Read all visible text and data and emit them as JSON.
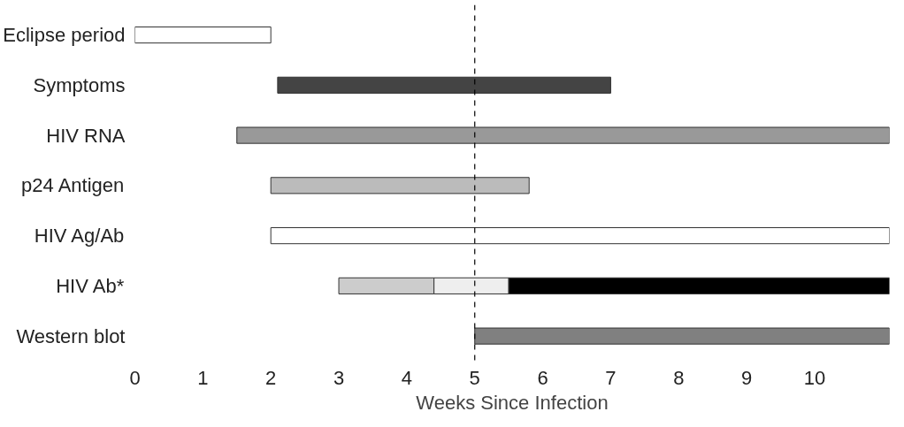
{
  "chart_data": {
    "type": "bar",
    "orientation": "horizontal",
    "categories": [
      "Eclipse period",
      "Symptoms",
      "HIV RNA",
      "p24 Antigen",
      "HIV Ag/Ab",
      "HIV Ab*",
      "Western blot"
    ],
    "series": [
      {
        "colors": [
          "#ffffff",
          "#444444",
          "#999999",
          "#bbbbbb",
          "#ffffff",
          "#cccccc",
          "#808080"
        ],
        "base": [
          0,
          2.1,
          1.5,
          2,
          2,
          3,
          5
        ],
        "values": [
          2,
          4.9,
          9.6,
          3.8,
          9.1,
          1.4,
          6.1
        ]
      },
      {
        "colors": [
          null,
          null,
          null,
          null,
          null,
          "#eeeeee",
          null
        ],
        "base": [
          null,
          null,
          null,
          null,
          null,
          4.4,
          null
        ],
        "values": [
          null,
          null,
          null,
          null,
          null,
          1.1,
          null
        ]
      },
      {
        "colors": [
          null,
          null,
          null,
          null,
          null,
          "#000000",
          null
        ],
        "base": [
          null,
          null,
          null,
          null,
          null,
          5.5,
          null
        ],
        "values": [
          null,
          null,
          null,
          null,
          null,
          5.6,
          null
        ]
      }
    ],
    "xlabel": "Weeks Since Infection",
    "xlim": [
      0,
      11.1
    ],
    "xticks": [
      0,
      1,
      2,
      3,
      4,
      5,
      6,
      7,
      8,
      9,
      10
    ],
    "ref_lines": [
      {
        "axis": "x",
        "value": 5,
        "color": "#000000",
        "line_style": "dashed"
      }
    ],
    "grid": false
  }
}
